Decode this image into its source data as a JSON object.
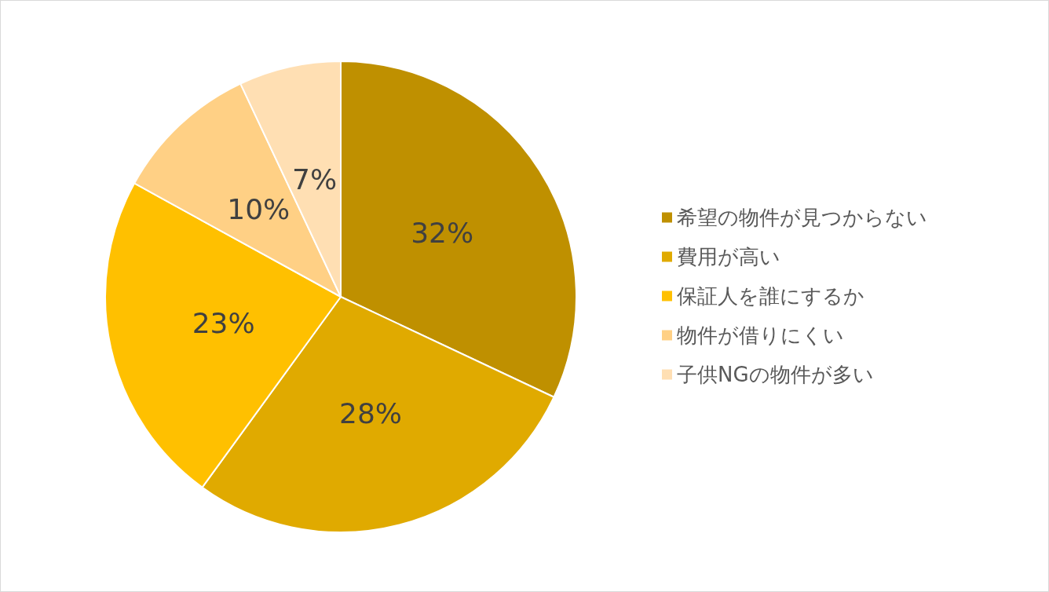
{
  "chart_data": {
    "type": "pie",
    "categories": [
      "希望の物件が見つからない",
      "費用が高い",
      "保証人を誰にするか",
      "物件が借りにくい",
      "子供NGの物件が多い"
    ],
    "values": [
      32,
      28,
      23,
      10,
      7
    ],
    "colors": [
      "#bf9000",
      "#e0aa00",
      "#ffc000",
      "#ffd085",
      "#ffdfb3"
    ],
    "value_labels": [
      "32%",
      "28%",
      "23%",
      "10%",
      "7%"
    ],
    "legend": "right"
  }
}
